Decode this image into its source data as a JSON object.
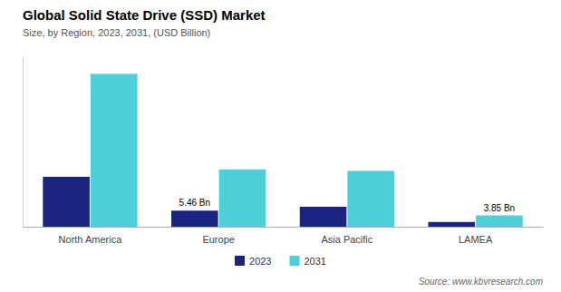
{
  "chart_data": {
    "type": "bar",
    "title": "Global Solid State Drive (SSD) Market",
    "subtitle": "Size, by Region, 2023, 2031, (USD Billion)",
    "source": "Source: www.kbvresearch.com",
    "categories": [
      "North America",
      "Europe",
      "Asia Pacific",
      "LAMEA"
    ],
    "series": [
      {
        "name": "2023",
        "color": "#1a237e",
        "values": [
          17.0,
          5.46,
          6.8,
          1.6
        ],
        "value_labels": [
          null,
          "5.46 Bn",
          null,
          null
        ]
      },
      {
        "name": "2031",
        "color": "#4dd0d8",
        "values": [
          52.0,
          19.5,
          19.0,
          3.85
        ],
        "value_labels": [
          null,
          null,
          null,
          "3.85 Bn"
        ]
      }
    ],
    "ylim": [
      0,
      58
    ],
    "grid": false,
    "legend": "bottom",
    "tick_labels": "x"
  }
}
